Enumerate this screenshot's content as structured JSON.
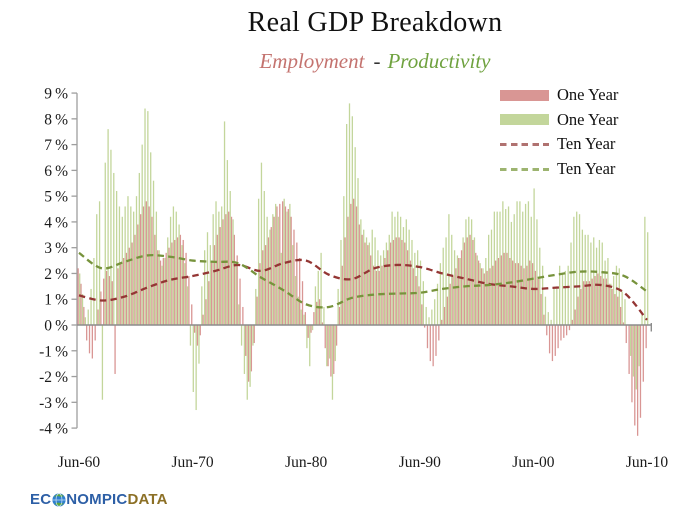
{
  "header": {
    "title": "Real GDP Breakdown",
    "subtitle_employment": "Employment",
    "subtitle_separator": "-",
    "subtitle_productivity": "Productivity",
    "employment_color": "#c4736f",
    "productivity_color": "#6fa23f"
  },
  "legend": {
    "items": [
      {
        "label": "One Year",
        "type": "bar",
        "color": "#D99694"
      },
      {
        "label": "One Year",
        "type": "bar",
        "color": "#C3D69B"
      },
      {
        "label": "Ten Year",
        "type": "dash",
        "color": "#B07270"
      },
      {
        "label": "Ten Year",
        "type": "dash",
        "color": "#9DB470"
      }
    ]
  },
  "logo": {
    "part1": "EC",
    "part2": "NOMPIC",
    "part3": "DATA",
    "blue": "#2d5fa6",
    "gold": "#8c7026"
  },
  "chart_data": {
    "type": "bar",
    "title": "Real GDP Breakdown",
    "subtitle": "Employment - Productivity",
    "x_start_label": "Jun-60",
    "x_tick_labels": [
      "Jun-60",
      "Jun-70",
      "Jun-80",
      "Jun-90",
      "Jun-00",
      "Jun-10"
    ],
    "x_tick_quarters": [
      0,
      40,
      80,
      120,
      160,
      200
    ],
    "quarters_start": "1960-Q2",
    "quarters_end": "2010-Q2",
    "ylim": [
      -4,
      9
    ],
    "y_tick_step": 1,
    "y_tick_suffix": "%",
    "axis_color": "#9e9e9e",
    "zero_line_color": "#8c8c8c",
    "label_color": "#1a1a1a",
    "series": [
      {
        "name": "Employment One Year",
        "type": "bar",
        "color": "#D99694",
        "values": [
          2.2,
          1.6,
          0.7,
          -0.6,
          -1.1,
          -1.3,
          -0.6,
          0.6,
          1.3,
          1.8,
          2.1,
          1.9,
          1.7,
          -1.9,
          2.2,
          2.4,
          2.6,
          2.8,
          3.0,
          3.2,
          3.5,
          3.9,
          4.3,
          4.6,
          4.8,
          4.6,
          4.2,
          3.5,
          2.9,
          2.5,
          2.6,
          2.8,
          3.0,
          3.2,
          3.3,
          3.4,
          3.5,
          3.3,
          2.8,
          1.9,
          0.8,
          -0.3,
          -0.8,
          -0.4,
          0.4,
          1.0,
          1.7,
          2.5,
          3.1,
          3.5,
          3.8,
          4.1,
          4.3,
          4.4,
          4.2,
          3.5,
          2.7,
          1.8,
          0.7,
          -1.2,
          -2.2,
          -1.8,
          -0.7,
          1.1,
          2.4,
          2.9,
          3.1,
          3.4,
          3.8,
          4.2,
          4.6,
          4.7,
          4.8,
          4.6,
          4.5,
          4.2,
          3.7,
          3.2,
          2.6,
          1.7,
          0.5,
          -0.5,
          -0.3,
          0.5,
          0.9,
          1.0,
          0.1,
          -0.9,
          -1.6,
          -2.0,
          -1.9,
          -0.8,
          0.7,
          2.3,
          3.4,
          4.2,
          4.7,
          4.9,
          4.6,
          3.9,
          3.5,
          3.2,
          3.1,
          2.7,
          2.3,
          2.1,
          2.1,
          2.3,
          2.6,
          2.9,
          3.2,
          3.3,
          3.4,
          3.4,
          3.3,
          3.2,
          2.9,
          2.5,
          2.2,
          1.9,
          1.5,
          0.8,
          -0.1,
          -0.9,
          -1.4,
          -1.6,
          -1.2,
          -0.6,
          0.2,
          0.7,
          1.1,
          1.6,
          1.9,
          2.2,
          2.6,
          2.9,
          3.2,
          3.4,
          3.5,
          3.3,
          2.8,
          2.5,
          2.2,
          2.0,
          2.1,
          2.2,
          2.3,
          2.5,
          2.6,
          2.7,
          2.8,
          2.8,
          2.6,
          2.5,
          2.4,
          2.4,
          2.3,
          2.2,
          2.3,
          2.5,
          2.4,
          2.1,
          1.8,
          1.2,
          0.4,
          -0.4,
          -1.1,
          -1.4,
          -1.2,
          -0.9,
          -0.6,
          -0.5,
          -0.4,
          -0.2,
          0.2,
          0.6,
          1.1,
          1.4,
          1.7,
          1.7,
          1.7,
          1.8,
          1.9,
          2.0,
          1.9,
          1.8,
          1.8,
          1.6,
          1.4,
          1.2,
          1.1,
          0.7,
          0.1,
          -0.7,
          -1.9,
          -3.0,
          -3.9,
          -4.3,
          -3.6,
          -2.2,
          -0.9
        ]
      },
      {
        "name": "Productivity One Year",
        "type": "bar",
        "color": "#C3D69B",
        "values": [
          2.0,
          1.2,
          0.3,
          0.6,
          1.4,
          2.6,
          4.3,
          4.8,
          -2.9,
          6.3,
          7.6,
          6.8,
          5.9,
          5.2,
          4.6,
          4.2,
          4.6,
          5.0,
          4.6,
          4.4,
          5.0,
          5.9,
          7.0,
          8.4,
          8.3,
          6.7,
          5.6,
          4.4,
          2.9,
          2.3,
          2.6,
          3.4,
          4.2,
          4.6,
          4.4,
          3.9,
          3.1,
          2.4,
          1.5,
          -0.8,
          -2.6,
          -3.3,
          -1.5,
          1.5,
          2.9,
          3.6,
          3.1,
          4.3,
          4.8,
          4.4,
          4.6,
          7.9,
          6.4,
          5.2,
          4.1,
          2.3,
          0.8,
          -0.8,
          -1.9,
          -2.9,
          -2.4,
          -0.8,
          1.4,
          4.9,
          6.3,
          5.2,
          4.2,
          3.7,
          4.3,
          4.7,
          4.2,
          2.8,
          4.9,
          4.4,
          4.7,
          3.1,
          1.9,
          1.1,
          0.6,
          0.4,
          -0.9,
          -1.6,
          -0.2,
          1.5,
          2.1,
          2.8,
          0.7,
          -1.6,
          -1.3,
          -2.9,
          -1.4,
          1.4,
          3.3,
          5.0,
          7.8,
          8.6,
          8.1,
          6.9,
          5.7,
          4.1,
          3.7,
          3.4,
          3.2,
          3.7,
          3.4,
          2.9,
          2.7,
          2.9,
          3.2,
          3.5,
          4.4,
          4.2,
          4.4,
          4.2,
          3.8,
          4.1,
          3.7,
          3.3,
          2.8,
          2.9,
          2.5,
          1.7,
          0.7,
          0.3,
          0.6,
          1.0,
          1.6,
          2.4,
          3.0,
          3.4,
          4.3,
          3.5,
          2.9,
          2.7,
          2.6,
          3.4,
          4.1,
          4.2,
          4.1,
          3.4,
          2.7,
          2.4,
          2.2,
          2.6,
          3.5,
          3.7,
          4.4,
          4.4,
          4.4,
          4.8,
          4.5,
          4.6,
          4.0,
          4.3,
          4.8,
          4.8,
          4.4,
          4.7,
          4.8,
          4.2,
          5.3,
          4.1,
          3.0,
          2.3,
          1.1,
          0.5,
          0.2,
          1.4,
          1.5,
          2.3,
          2.0,
          2.1,
          2.3,
          3.2,
          4.2,
          4.4,
          4.3,
          3.7,
          3.5,
          3.5,
          3.2,
          3.4,
          3.0,
          3.3,
          3.2,
          2.5,
          2.6,
          1.6,
          1.9,
          2.3,
          2.2,
          1.3,
          1.0,
          0.0,
          -1.2,
          -2.0,
          -2.5,
          -1.6,
          0.4,
          4.2,
          3.6
        ]
      },
      {
        "name": "Employment Ten Year",
        "type": "line",
        "dashed": true,
        "color": "#943634",
        "x_start_year": 1960,
        "x_step_years": 2,
        "values": [
          1.15,
          0.95,
          1.1,
          1.45,
          1.75,
          1.9,
          2.1,
          2.33,
          2.1,
          2.4,
          2.5,
          1.95,
          1.78,
          2.2,
          2.33,
          2.25,
          2.0,
          1.8,
          1.6,
          1.5,
          1.4,
          1.45,
          1.5,
          1.55,
          1.25,
          0.2
        ]
      },
      {
        "name": "Productivity Ten Year",
        "type": "line",
        "dashed": true,
        "color": "#77933C",
        "x_start_year": 1960,
        "x_step_years": 2,
        "values": [
          2.8,
          2.2,
          2.45,
          2.7,
          2.65,
          2.5,
          2.45,
          2.4,
          1.85,
          1.35,
          0.8,
          0.7,
          1.05,
          1.18,
          1.22,
          1.25,
          1.4,
          1.5,
          1.55,
          1.65,
          1.8,
          1.95,
          2.07,
          2.05,
          1.9,
          1.3
        ]
      }
    ]
  }
}
